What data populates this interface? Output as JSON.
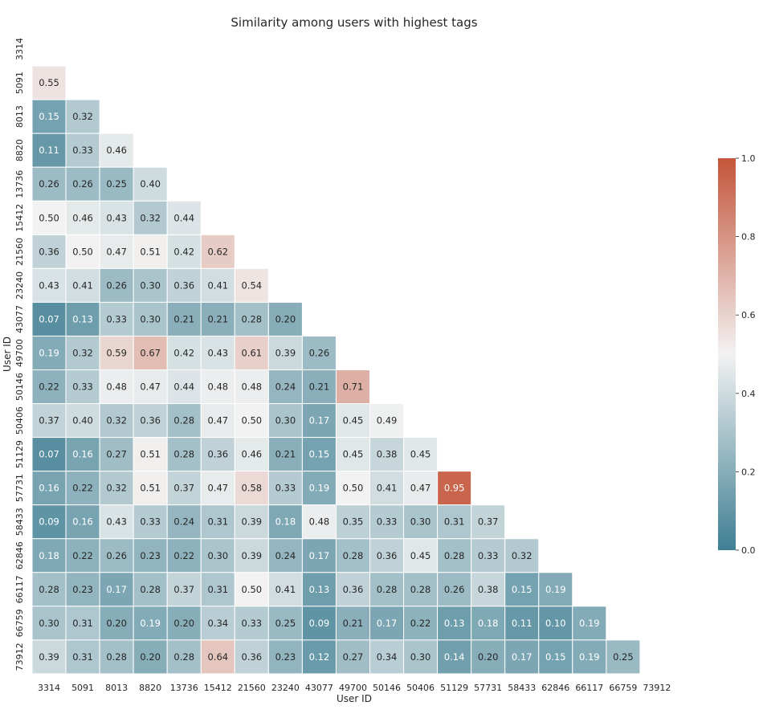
{
  "chart_data": {
    "type": "heatmap",
    "title": "Similarity among users with highest tags",
    "xlabel": "User ID",
    "ylabel": "User ID",
    "labels": [
      "3314",
      "5091",
      "8013",
      "8820",
      "13736",
      "15412",
      "21560",
      "23240",
      "43077",
      "49700",
      "50146",
      "50406",
      "51129",
      "57731",
      "58433",
      "62846",
      "66117",
      "66759",
      "73912"
    ],
    "lower_triangle_only": true,
    "matrix": [
      [],
      [
        0.55
      ],
      [
        0.15,
        0.32
      ],
      [
        0.11,
        0.33,
        0.46
      ],
      [
        0.26,
        0.26,
        0.25,
        0.4
      ],
      [
        0.5,
        0.46,
        0.43,
        0.32,
        0.44
      ],
      [
        0.36,
        0.5,
        0.47,
        0.51,
        0.42,
        0.62
      ],
      [
        0.43,
        0.41,
        0.26,
        0.3,
        0.36,
        0.41,
        0.54
      ],
      [
        0.07,
        0.13,
        0.33,
        0.3,
        0.21,
        0.21,
        0.28,
        0.2
      ],
      [
        0.19,
        0.32,
        0.59,
        0.67,
        0.42,
        0.43,
        0.61,
        0.39,
        0.26
      ],
      [
        0.22,
        0.33,
        0.48,
        0.47,
        0.44,
        0.48,
        0.48,
        0.24,
        0.21,
        0.71
      ],
      [
        0.37,
        0.4,
        0.32,
        0.36,
        0.28,
        0.47,
        0.5,
        0.3,
        0.17,
        0.45,
        0.49
      ],
      [
        0.07,
        0.16,
        0.27,
        0.51,
        0.28,
        0.36,
        0.46,
        0.21,
        0.15,
        0.45,
        0.38,
        0.45
      ],
      [
        0.16,
        0.22,
        0.32,
        0.51,
        0.37,
        0.47,
        0.58,
        0.33,
        0.19,
        0.5,
        0.41,
        0.47,
        0.95
      ],
      [
        0.09,
        0.16,
        0.43,
        0.33,
        0.24,
        0.31,
        0.39,
        0.18,
        0.48,
        0.35,
        0.33,
        0.3,
        0.31,
        0.37
      ],
      [
        0.18,
        0.22,
        0.26,
        0.23,
        0.22,
        0.3,
        0.39,
        0.24,
        0.17,
        0.28,
        0.36,
        0.45,
        0.28,
        0.33,
        0.32
      ],
      [
        0.28,
        0.23,
        0.17,
        0.28,
        0.37,
        0.31,
        0.5,
        0.41,
        0.13,
        0.36,
        0.28,
        0.28,
        0.26,
        0.38,
        0.15,
        0.19
      ],
      [
        0.3,
        0.31,
        0.2,
        0.19,
        0.2,
        0.34,
        0.33,
        0.25,
        0.09,
        0.21,
        0.17,
        0.22,
        0.13,
        0.18,
        0.11,
        0.1,
        0.19
      ],
      [
        0.39,
        0.31,
        0.28,
        0.2,
        0.28,
        0.64,
        0.36,
        0.23,
        0.12,
        0.27,
        0.34,
        0.3,
        0.14,
        0.2,
        0.17,
        0.15,
        0.19,
        0.25
      ]
    ],
    "value_format": "2 decimals",
    "colorbar": {
      "range": [
        0.0,
        1.0
      ],
      "ticks": [
        "0.0",
        "0.2",
        "0.4",
        "0.6",
        "0.8",
        "1.0"
      ],
      "colors": [
        "#3f7f93",
        "#f2f2f2",
        "#c3553a"
      ]
    }
  }
}
